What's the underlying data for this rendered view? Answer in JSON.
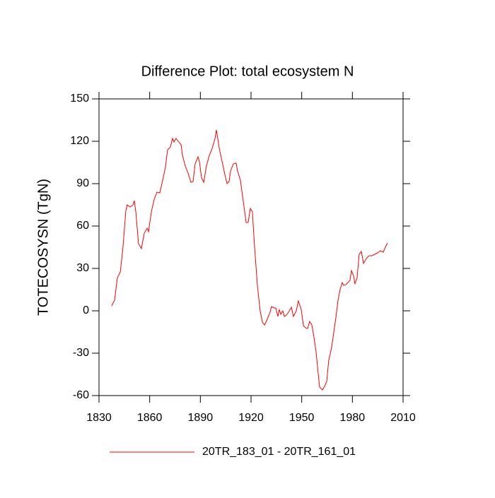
{
  "chart_data": {
    "type": "line",
    "title": "Difference Plot: total ecosystem N",
    "y_label": "TOTECOSYSN  (TgN)",
    "x": [
      1837.5,
      1839.2,
      1840.9,
      1842.6,
      1844.2,
      1845.9,
      1846.7,
      1848.4,
      1850.1,
      1850.9,
      1851.8,
      1853.4,
      1855.1,
      1856.8,
      1858.5,
      1859.3,
      1861.0,
      1862.7,
      1864.3,
      1866.0,
      1867.7,
      1869.3,
      1870.6,
      1872.3,
      1873.5,
      1874.4,
      1875.6,
      1876.9,
      1878.6,
      1879.4,
      1881.1,
      1882.7,
      1884.4,
      1885.7,
      1886.9,
      1888.6,
      1889.4,
      1890.7,
      1892.0,
      1893.6,
      1895.3,
      1897.0,
      1898.7,
      1899.5,
      1901.2,
      1902.8,
      1904.5,
      1905.8,
      1907.0,
      1907.9,
      1909.5,
      1911.2,
      1912.0,
      1913.7,
      1915.4,
      1917.1,
      1918.3,
      1919.6,
      1920.8,
      1922.1,
      1923.8,
      1925.4,
      1926.7,
      1928.0,
      1929.6,
      1931.3,
      1932.1,
      1933.8,
      1934.7,
      1935.9,
      1936.7,
      1937.6,
      1938.8,
      1939.7,
      1940.9,
      1942.2,
      1943.9,
      1945.1,
      1946.8,
      1948.0,
      1949.7,
      1951.0,
      1952.2,
      1953.5,
      1954.7,
      1956.0,
      1957.3,
      1958.5,
      1959.8,
      1960.6,
      1961.4,
      1962.3,
      1963.5,
      1964.8,
      1966.0,
      1967.7,
      1969.0,
      1970.2,
      1971.5,
      1972.7,
      1974.0,
      1974.8,
      1976.1,
      1977.3,
      1978.6,
      1979.4,
      1980.7,
      1981.5,
      1982.8,
      1984.0,
      1985.3,
      1986.6,
      1988.2,
      1989.9,
      1991.6,
      1993.3,
      1994.9,
      1996.6,
      1998.3,
      1999.5,
      2000.8
    ],
    "series": [
      {
        "name": "20TR_183_01 - 20TR_161_01",
        "color": "#ff0000",
        "values": [
          3.5,
          7.5,
          23.5,
          27.5,
          45,
          71,
          75,
          73.5,
          75,
          78,
          70,
          47.5,
          44,
          55,
          58.5,
          56,
          70,
          79,
          84,
          83.5,
          92.5,
          101.5,
          114,
          116,
          122,
          119.5,
          122,
          120,
          117.5,
          110,
          102.5,
          97.5,
          91,
          91.5,
          104,
          109,
          106,
          94,
          91,
          102.5,
          110,
          115,
          122,
          128,
          115,
          106,
          96.5,
          90,
          91.5,
          99,
          104,
          104.5,
          99,
          92.5,
          77.5,
          62.5,
          62.5,
          72.5,
          70,
          45,
          17.5,
          0,
          -8,
          -10,
          -6,
          -1,
          3,
          2,
          2,
          -4,
          1,
          -2.5,
          0,
          -4,
          -3,
          -1,
          2.5,
          -4,
          0,
          7,
          1,
          -10.5,
          -12,
          -12.5,
          -7.5,
          -10,
          -19,
          -29,
          -45,
          -54,
          -55,
          -56,
          -53.5,
          -50,
          -35,
          -26,
          -15,
          -5,
          7.5,
          15,
          20,
          18,
          18.5,
          20,
          21.5,
          28.5,
          25,
          19,
          23.5,
          40,
          42,
          33.5,
          37,
          39,
          39,
          40,
          41,
          42.5,
          41.5,
          45,
          48
        ]
      }
    ],
    "xlim": [
      1830,
      2010
    ],
    "xticks": [
      1830,
      1860,
      1890,
      1920,
      1950,
      1980,
      2010
    ],
    "ylim": [
      -60,
      150
    ],
    "yticks": [
      -60,
      -30,
      0,
      30,
      60,
      90,
      120,
      150
    ]
  }
}
